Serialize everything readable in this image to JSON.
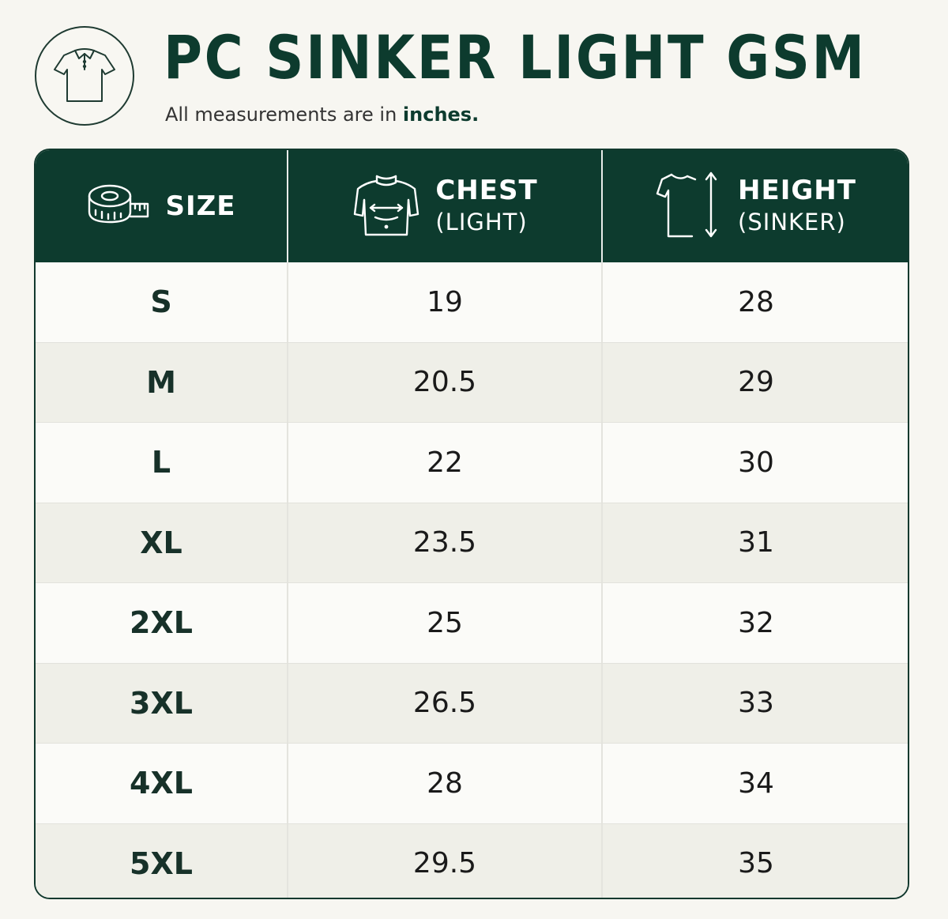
{
  "header": {
    "logo_icon": "polo-shirt-icon",
    "title": "PC SINKER LIGHT GSM",
    "subtitle_prefix": "All measurements are in ",
    "subtitle_unit": "inches."
  },
  "table": {
    "columns": [
      {
        "icon": "measuring-tape-icon",
        "label": "SIZE",
        "sub": ""
      },
      {
        "icon": "chest-measure-icon",
        "label": "CHEST",
        "sub": "(LIGHT)"
      },
      {
        "icon": "tshirt-height-icon",
        "label": "HEIGHT",
        "sub": "(SINKER)"
      }
    ],
    "rows": [
      {
        "size": "S",
        "chest": "19",
        "height": "28"
      },
      {
        "size": "M",
        "chest": "20.5",
        "height": "29"
      },
      {
        "size": "L",
        "chest": "22",
        "height": "30"
      },
      {
        "size": "XL",
        "chest": "23.5",
        "height": "31"
      },
      {
        "size": "2XL",
        "chest": "25",
        "height": "32"
      },
      {
        "size": "3XL",
        "chest": "26.5",
        "height": "33"
      },
      {
        "size": "4XL",
        "chest": "28",
        "height": "34"
      },
      {
        "size": "5XL",
        "chest": "29.5",
        "height": "35"
      }
    ]
  },
  "colors": {
    "primary_green": "#0d3b2e",
    "row_alt": "#efefe8",
    "background": "#f7f6f1"
  }
}
